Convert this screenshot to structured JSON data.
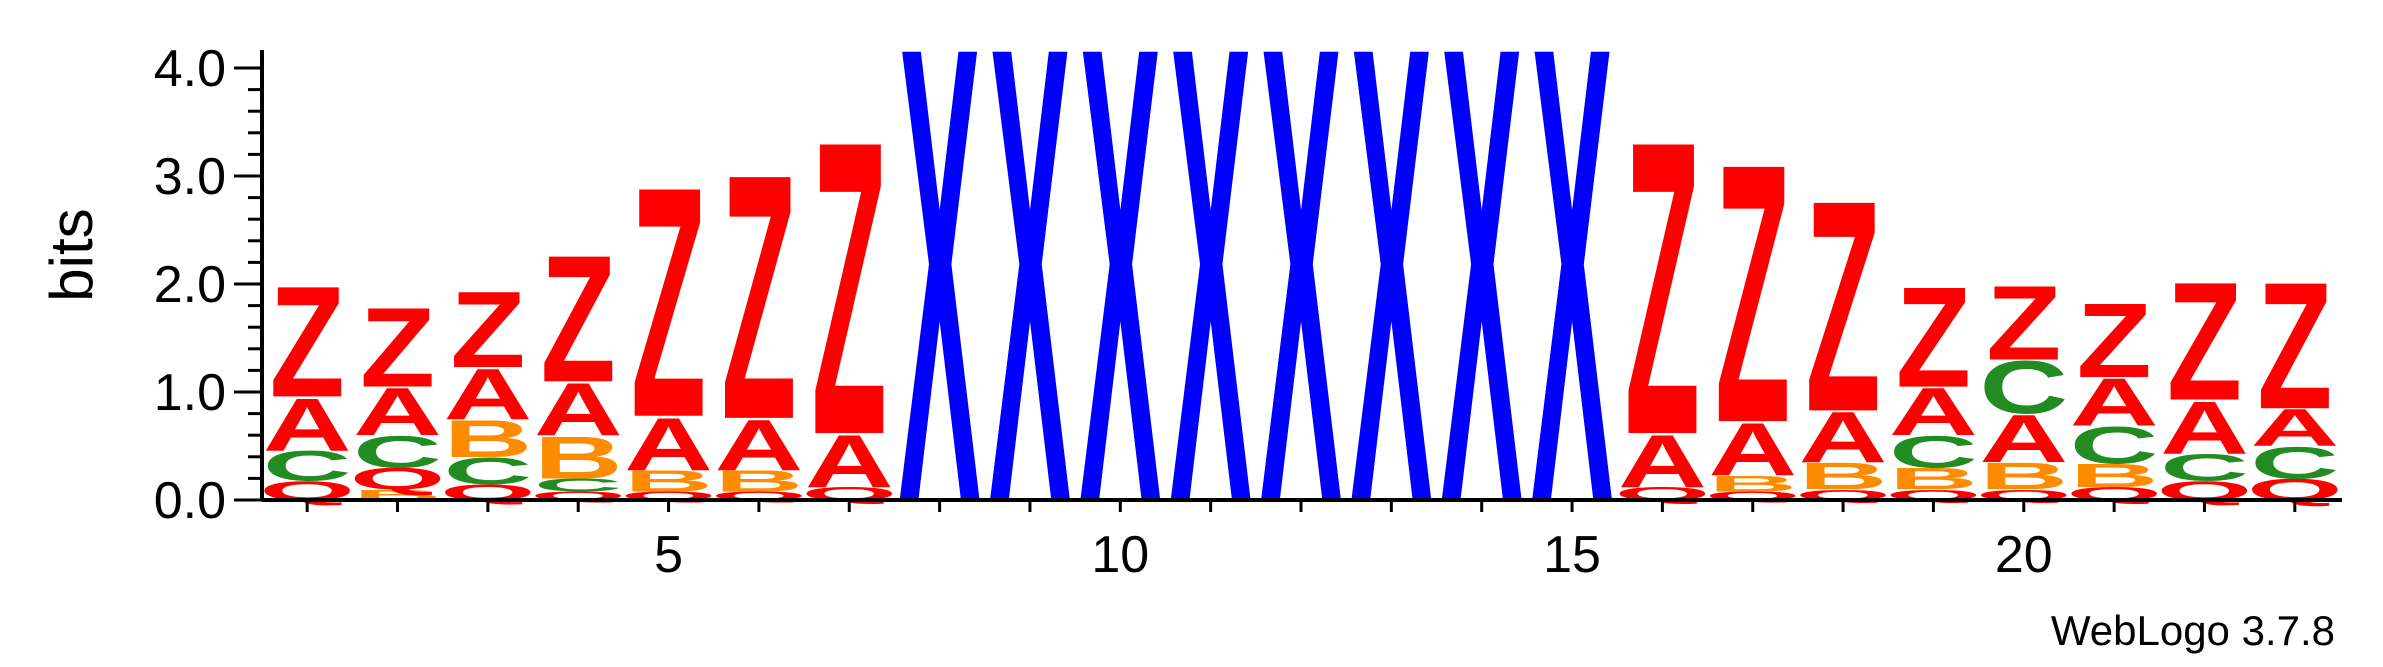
{
  "chart_data": {
    "type": "sequence-logo",
    "ylabel": "bits",
    "ylim": [
      0,
      4.0
    ],
    "yticks": [
      "0.0",
      "1.0",
      "2.0",
      "3.0",
      "4.0"
    ],
    "xticks": [
      5,
      10,
      15,
      20
    ],
    "credit": "WebLogo 3.7.8",
    "colors": {
      "Z": "#ff0000",
      "A": "#ff0000",
      "Q": "#ff0000",
      "X": "#0000ff",
      "B": "#ff8c00",
      "C": "#228b22"
    },
    "positions": [
      {
        "pos": 1,
        "stack": [
          [
            "Q",
            0.18
          ],
          [
            "C",
            0.28
          ],
          [
            "A",
            0.5
          ],
          [
            "Z",
            1.05
          ]
        ]
      },
      {
        "pos": 2,
        "stack": [
          [
            "B",
            0.1
          ],
          [
            "Q",
            0.2
          ],
          [
            "C",
            0.3
          ],
          [
            "A",
            0.45
          ],
          [
            "Z",
            0.75
          ]
        ]
      },
      {
        "pos": 3,
        "stack": [
          [
            "Q",
            0.15
          ],
          [
            "C",
            0.25
          ],
          [
            "B",
            0.35
          ],
          [
            "A",
            0.48
          ],
          [
            "Z",
            0.72
          ]
        ]
      },
      {
        "pos": 4,
        "stack": [
          [
            "Q",
            0.08
          ],
          [
            "C",
            0.12
          ],
          [
            "B",
            0.4
          ],
          [
            "A",
            0.5
          ],
          [
            "Z",
            1.2
          ]
        ]
      },
      {
        "pos": 5,
        "stack": [
          [
            "Q",
            0.08
          ],
          [
            "B",
            0.2
          ],
          [
            "A",
            0.5
          ],
          [
            "Z",
            2.18
          ]
        ]
      },
      {
        "pos": 6,
        "stack": [
          [
            "Q",
            0.08
          ],
          [
            "B",
            0.2
          ],
          [
            "A",
            0.48
          ],
          [
            "Z",
            2.32
          ]
        ]
      },
      {
        "pos": 7,
        "stack": [
          [
            "Q",
            0.12
          ],
          [
            "A",
            0.5
          ],
          [
            "Z",
            2.78
          ]
        ]
      },
      {
        "pos": 8,
        "stack": [
          [
            "X",
            4.32
          ]
        ]
      },
      {
        "pos": 9,
        "stack": [
          [
            "X",
            4.32
          ]
        ]
      },
      {
        "pos": 10,
        "stack": [
          [
            "X",
            4.32
          ]
        ]
      },
      {
        "pos": 11,
        "stack": [
          [
            "X",
            4.32
          ]
        ]
      },
      {
        "pos": 12,
        "stack": [
          [
            "X",
            4.32
          ]
        ]
      },
      {
        "pos": 13,
        "stack": [
          [
            "X",
            4.32
          ]
        ]
      },
      {
        "pos": 14,
        "stack": [
          [
            "X",
            4.32
          ]
        ]
      },
      {
        "pos": 15,
        "stack": [
          [
            "X",
            4.32
          ]
        ]
      },
      {
        "pos": 16,
        "stack": [
          [
            "Q",
            0.12
          ],
          [
            "A",
            0.5
          ],
          [
            "Z",
            2.78
          ]
        ]
      },
      {
        "pos": 17,
        "stack": [
          [
            "Q",
            0.08
          ],
          [
            "B",
            0.15
          ],
          [
            "A",
            0.5
          ],
          [
            "Z",
            2.45
          ]
        ]
      },
      {
        "pos": 18,
        "stack": [
          [
            "Q",
            0.1
          ],
          [
            "B",
            0.25
          ],
          [
            "A",
            0.48
          ],
          [
            "Z",
            2.0
          ]
        ]
      },
      {
        "pos": 19,
        "stack": [
          [
            "Q",
            0.1
          ],
          [
            "B",
            0.2
          ],
          [
            "C",
            0.3
          ],
          [
            "A",
            0.45
          ],
          [
            "Z",
            0.95
          ]
        ]
      },
      {
        "pos": 20,
        "stack": [
          [
            "Q",
            0.1
          ],
          [
            "B",
            0.25
          ],
          [
            "A",
            0.45
          ],
          [
            "C",
            0.5
          ],
          [
            "Z",
            0.7
          ]
        ]
      },
      {
        "pos": 21,
        "stack": [
          [
            "Q",
            0.12
          ],
          [
            "B",
            0.22
          ],
          [
            "C",
            0.35
          ],
          [
            "A",
            0.45
          ],
          [
            "Z",
            0.7
          ]
        ]
      },
      {
        "pos": 22,
        "stack": [
          [
            "Q",
            0.18
          ],
          [
            "C",
            0.25
          ],
          [
            "A",
            0.5
          ],
          [
            "Z",
            1.12
          ]
        ]
      },
      {
        "pos": 23,
        "stack": [
          [
            "Q",
            0.2
          ],
          [
            "C",
            0.3
          ],
          [
            "A",
            0.35
          ],
          [
            "Z",
            1.2
          ]
        ]
      }
    ]
  }
}
